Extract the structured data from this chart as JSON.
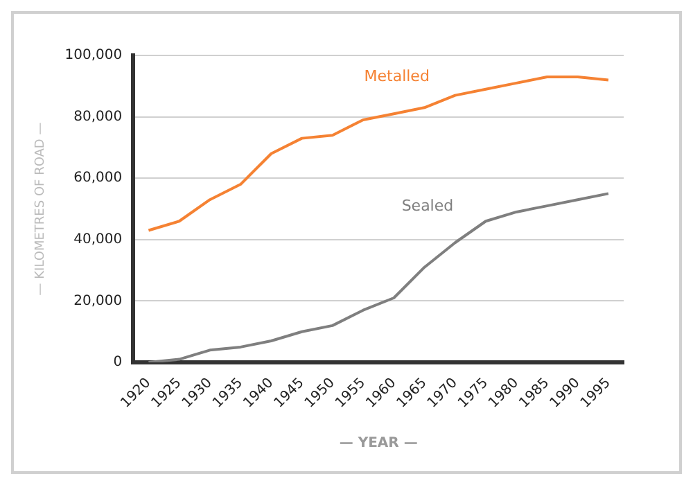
{
  "chart_data": {
    "type": "line",
    "xlabel": "— YEAR —",
    "ylabel": "— KILOMETRES OF ROAD —",
    "categories": [
      "1920",
      "1925",
      "1930",
      "1935",
      "1940",
      "1945",
      "1950",
      "1955",
      "1960",
      "1965",
      "1970",
      "1975",
      "1980",
      "1985",
      "1990",
      "1995"
    ],
    "series": [
      {
        "name": "Metalled",
        "color": "#f58233",
        "values": [
          43000,
          46000,
          53000,
          58000,
          68000,
          73000,
          74000,
          79000,
          81000,
          83000,
          87000,
          89000,
          91000,
          93000,
          93000,
          92000
        ]
      },
      {
        "name": "Sealed",
        "color": "#7f7f7f",
        "values": [
          0,
          1000,
          4000,
          5000,
          7000,
          10000,
          12000,
          17000,
          21000,
          31000,
          39000,
          46000,
          49000,
          51000,
          53000,
          55000
        ]
      }
    ],
    "ylim": [
      0,
      100000
    ],
    "yticks": [
      0,
      {
        "value": 20000,
        "label": "20,000"
      },
      {
        "value": 40000,
        "label": "40,000"
      },
      {
        "value": 60000,
        "label": "60,000"
      },
      {
        "value": 80000,
        "label": "80,000"
      },
      {
        "value": 100000,
        "label": "100,000"
      }
    ],
    "grid": "y",
    "legend": false,
    "marker": "none",
    "line_style": "solid"
  }
}
